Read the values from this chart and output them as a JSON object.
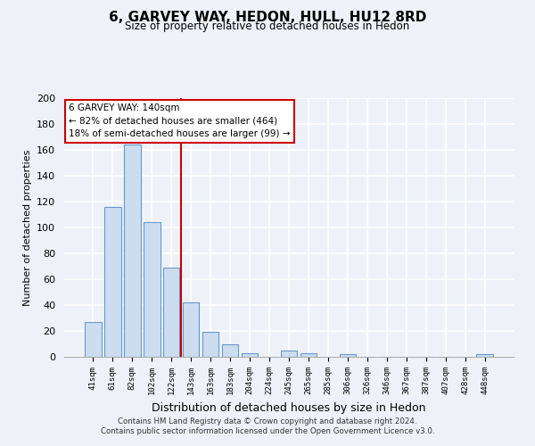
{
  "title": "6, GARVEY WAY, HEDON, HULL, HU12 8RD",
  "subtitle": "Size of property relative to detached houses in Hedon",
  "xlabel": "Distribution of detached houses by size in Hedon",
  "ylabel": "Number of detached properties",
  "bar_labels": [
    "41sqm",
    "61sqm",
    "82sqm",
    "102sqm",
    "122sqm",
    "143sqm",
    "163sqm",
    "183sqm",
    "204sqm",
    "224sqm",
    "245sqm",
    "265sqm",
    "285sqm",
    "306sqm",
    "326sqm",
    "346sqm",
    "367sqm",
    "387sqm",
    "407sqm",
    "428sqm",
    "448sqm"
  ],
  "bar_values": [
    27,
    116,
    164,
    104,
    69,
    42,
    19,
    10,
    3,
    0,
    5,
    3,
    0,
    2,
    0,
    0,
    0,
    0,
    0,
    0,
    2
  ],
  "bar_color": "#ccddf0",
  "bar_edge_color": "#6699cc",
  "vline_x": 4.5,
  "vline_color": "#cc0000",
  "ylim": [
    0,
    200
  ],
  "yticks": [
    0,
    20,
    40,
    60,
    80,
    100,
    120,
    140,
    160,
    180,
    200
  ],
  "annotation_title": "6 GARVEY WAY: 140sqm",
  "annotation_line1": "← 82% of detached houses are smaller (464)",
  "annotation_line2": "18% of semi-detached houses are larger (99) →",
  "footer_line1": "Contains HM Land Registry data © Crown copyright and database right 2024.",
  "footer_line2": "Contains public sector information licensed under the Open Government Licence v3.0.",
  "bg_color": "#eef2f8",
  "plot_bg_color": "#eef2f8",
  "grid_color": "#ffffff"
}
